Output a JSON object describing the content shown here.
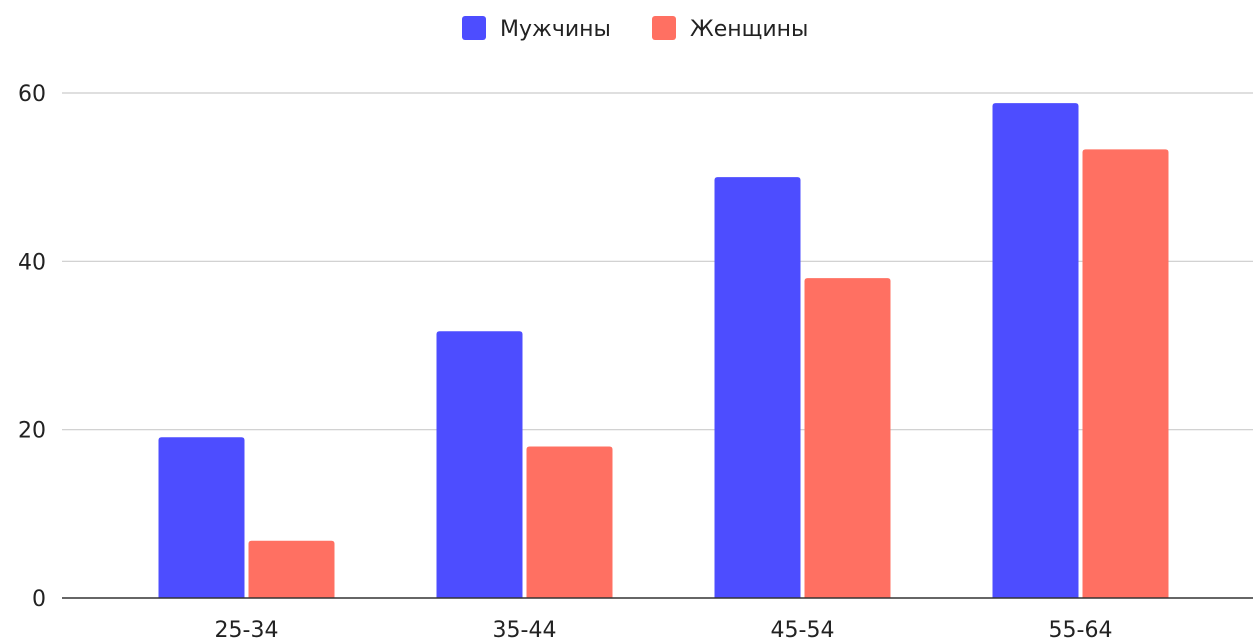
{
  "colors": {
    "men": "#4d4dff",
    "women": "#ff7062",
    "grid": "#cccccc",
    "axis": "#333333",
    "text": "#222222"
  },
  "legend": {
    "men_label": "Мужчины",
    "women_label": "Женщины"
  },
  "chart_data": {
    "type": "bar",
    "title": "",
    "xlabel": "",
    "ylabel": "",
    "categories": [
      "25-34",
      "35-44",
      "45-54",
      "55-64"
    ],
    "series": [
      {
        "name": "Мужчины",
        "color": "#4d4dff",
        "values": [
          19.1,
          31.7,
          50.0,
          58.8
        ]
      },
      {
        "name": "Женщины",
        "color": "#ff7062",
        "values": [
          6.8,
          18.0,
          38.0,
          53.3
        ]
      }
    ],
    "ylim": [
      0,
      60
    ],
    "yticks": [
      0,
      20,
      40,
      60
    ],
    "grid": true,
    "legend_position": "top-center"
  }
}
